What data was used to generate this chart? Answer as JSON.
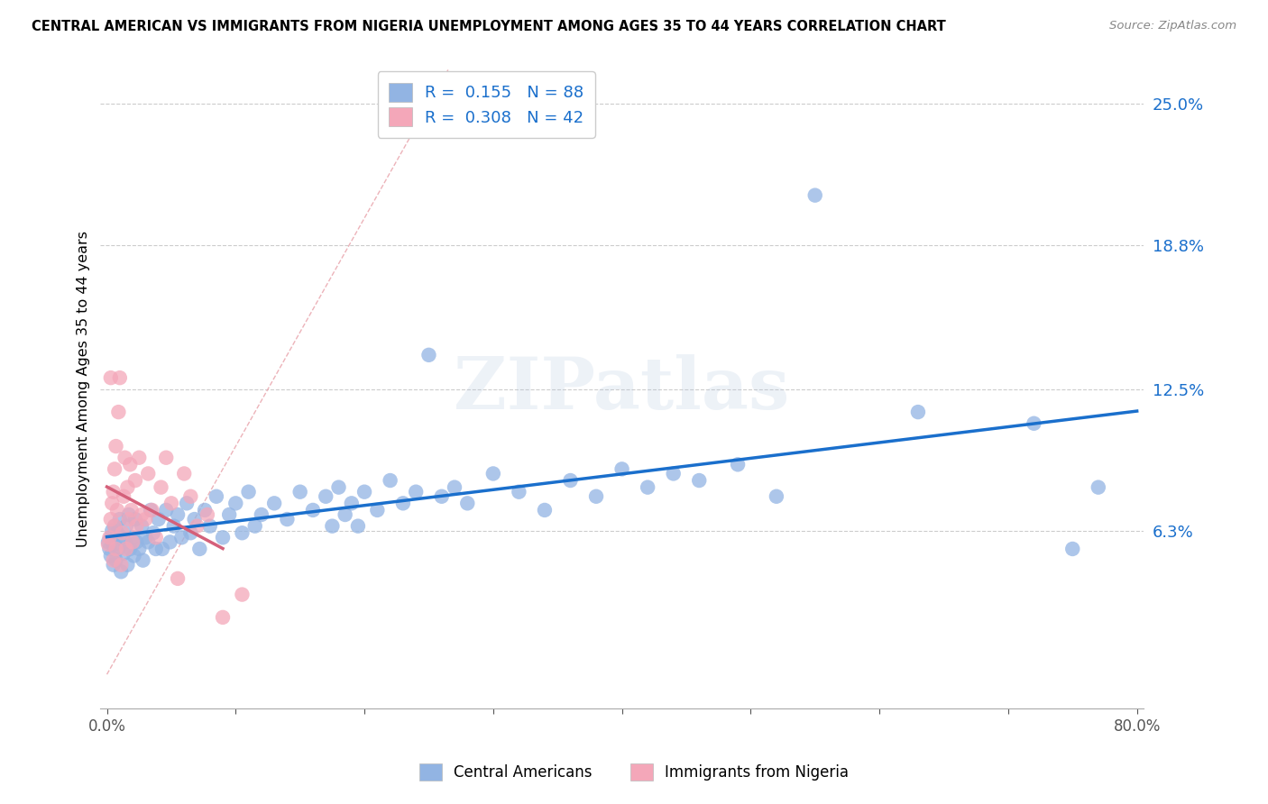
{
  "title": "CENTRAL AMERICAN VS IMMIGRANTS FROM NIGERIA UNEMPLOYMENT AMONG AGES 35 TO 44 YEARS CORRELATION CHART",
  "source": "Source: ZipAtlas.com",
  "ylabel": "Unemployment Among Ages 35 to 44 years",
  "xlim": [
    -0.005,
    0.805
  ],
  "ylim": [
    -0.015,
    0.265
  ],
  "yticks": [
    0.063,
    0.125,
    0.188,
    0.25
  ],
  "ytick_labels": [
    "6.3%",
    "12.5%",
    "18.8%",
    "25.0%"
  ],
  "xticks": [
    0.0,
    0.1,
    0.2,
    0.3,
    0.4,
    0.5,
    0.6,
    0.7,
    0.8
  ],
  "xtick_labels": [
    "0.0%",
    "",
    "",
    "",
    "",
    "",
    "",
    "",
    "80.0%"
  ],
  "blue_R": 0.155,
  "blue_N": 88,
  "pink_R": 0.308,
  "pink_N": 42,
  "blue_color": "#92b4e3",
  "pink_color": "#f4a7b9",
  "blue_line_color": "#1a6fcc",
  "pink_line_color": "#d4607a",
  "diag_line_color": "#e8a0a8",
  "watermark": "ZIPatlas",
  "legend_label_blue": "Central Americans",
  "legend_label_pink": "Immigrants from Nigeria",
  "blue_scatter_x": [
    0.001,
    0.002,
    0.003,
    0.003,
    0.004,
    0.005,
    0.005,
    0.006,
    0.007,
    0.008,
    0.009,
    0.01,
    0.011,
    0.012,
    0.013,
    0.014,
    0.015,
    0.016,
    0.017,
    0.018,
    0.02,
    0.021,
    0.022,
    0.023,
    0.025,
    0.027,
    0.028,
    0.03,
    0.032,
    0.034,
    0.036,
    0.038,
    0.04,
    0.043,
    0.046,
    0.049,
    0.052,
    0.055,
    0.058,
    0.062,
    0.065,
    0.068,
    0.072,
    0.076,
    0.08,
    0.085,
    0.09,
    0.095,
    0.1,
    0.105,
    0.11,
    0.115,
    0.12,
    0.13,
    0.14,
    0.15,
    0.16,
    0.17,
    0.175,
    0.18,
    0.185,
    0.19,
    0.195,
    0.2,
    0.21,
    0.22,
    0.23,
    0.24,
    0.25,
    0.26,
    0.27,
    0.28,
    0.3,
    0.32,
    0.34,
    0.36,
    0.38,
    0.4,
    0.42,
    0.44,
    0.46,
    0.49,
    0.52,
    0.55,
    0.63,
    0.72,
    0.75,
    0.77
  ],
  "blue_scatter_y": [
    0.058,
    0.055,
    0.06,
    0.052,
    0.063,
    0.057,
    0.048,
    0.065,
    0.05,
    0.062,
    0.055,
    0.068,
    0.045,
    0.06,
    0.053,
    0.058,
    0.065,
    0.048,
    0.07,
    0.055,
    0.06,
    0.052,
    0.068,
    0.058,
    0.055,
    0.065,
    0.05,
    0.06,
    0.058,
    0.072,
    0.062,
    0.055,
    0.068,
    0.055,
    0.072,
    0.058,
    0.065,
    0.07,
    0.06,
    0.075,
    0.062,
    0.068,
    0.055,
    0.072,
    0.065,
    0.078,
    0.06,
    0.07,
    0.075,
    0.062,
    0.08,
    0.065,
    0.07,
    0.075,
    0.068,
    0.08,
    0.072,
    0.078,
    0.065,
    0.082,
    0.07,
    0.075,
    0.065,
    0.08,
    0.072,
    0.085,
    0.075,
    0.08,
    0.14,
    0.078,
    0.082,
    0.075,
    0.088,
    0.08,
    0.072,
    0.085,
    0.078,
    0.09,
    0.082,
    0.088,
    0.085,
    0.092,
    0.078,
    0.21,
    0.115,
    0.11,
    0.055,
    0.082
  ],
  "pink_scatter_x": [
    0.001,
    0.002,
    0.003,
    0.003,
    0.004,
    0.005,
    0.005,
    0.006,
    0.006,
    0.007,
    0.007,
    0.008,
    0.009,
    0.01,
    0.011,
    0.012,
    0.013,
    0.014,
    0.015,
    0.016,
    0.017,
    0.018,
    0.019,
    0.02,
    0.022,
    0.023,
    0.025,
    0.027,
    0.03,
    0.032,
    0.035,
    0.038,
    0.042,
    0.046,
    0.05,
    0.055,
    0.06,
    0.065,
    0.07,
    0.078,
    0.09,
    0.105
  ],
  "pink_scatter_y": [
    0.057,
    0.06,
    0.068,
    0.13,
    0.075,
    0.05,
    0.08,
    0.065,
    0.09,
    0.055,
    0.1,
    0.072,
    0.115,
    0.13,
    0.048,
    0.062,
    0.078,
    0.095,
    0.055,
    0.082,
    0.068,
    0.092,
    0.072,
    0.058,
    0.085,
    0.065,
    0.095,
    0.07,
    0.068,
    0.088,
    0.072,
    0.06,
    0.082,
    0.095,
    0.075,
    0.042,
    0.088,
    0.078,
    0.065,
    0.07,
    0.025,
    0.035
  ]
}
